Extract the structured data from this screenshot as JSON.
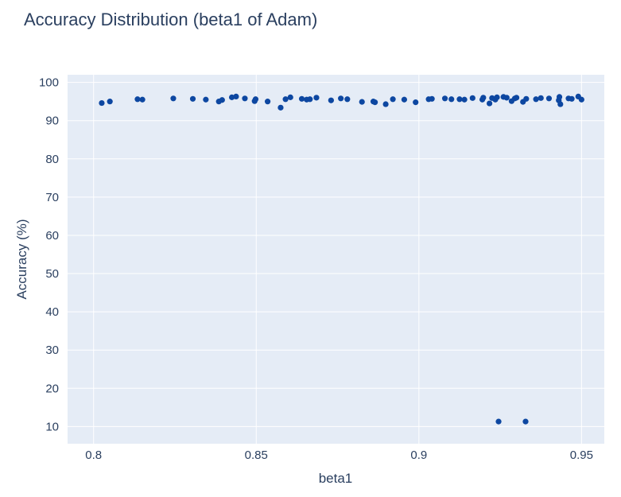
{
  "chart_data": {
    "type": "scatter",
    "title": "Accuracy Distribution (beta1 of Adam)",
    "xlabel": "beta1",
    "ylabel": "Accuracy (%)",
    "xlim": [
      0.792,
      0.957
    ],
    "ylim": [
      5.5,
      102
    ],
    "xticks": [
      0.8,
      0.85,
      0.9,
      0.95
    ],
    "xtick_labels": [
      "0.8",
      "0.85",
      "0.9",
      "0.95"
    ],
    "yticks": [
      10,
      20,
      30,
      40,
      50,
      60,
      70,
      80,
      90,
      100
    ],
    "grid": true,
    "legend": "none",
    "colors": {
      "marker": "#0d47a1",
      "plot_bg": "#e5ecf6",
      "grid": "#ffffff",
      "text": "#2a3f5f"
    },
    "series": [
      {
        "points": [
          [
            0.8025,
            94.6
          ],
          [
            0.805,
            95.0
          ],
          [
            0.8135,
            95.6
          ],
          [
            0.815,
            95.5
          ],
          [
            0.8245,
            95.8
          ],
          [
            0.8305,
            95.7
          ],
          [
            0.8345,
            95.5
          ],
          [
            0.8385,
            95.0
          ],
          [
            0.8395,
            95.4
          ],
          [
            0.8425,
            96.1
          ],
          [
            0.8438,
            96.3
          ],
          [
            0.8465,
            95.8
          ],
          [
            0.8495,
            95.1
          ],
          [
            0.8498,
            95.6
          ],
          [
            0.8535,
            95.0
          ],
          [
            0.8575,
            93.4
          ],
          [
            0.859,
            95.6
          ],
          [
            0.8605,
            96.1
          ],
          [
            0.864,
            95.7
          ],
          [
            0.8655,
            95.5
          ],
          [
            0.8665,
            95.6
          ],
          [
            0.8685,
            96.0
          ],
          [
            0.873,
            95.3
          ],
          [
            0.876,
            95.8
          ],
          [
            0.878,
            95.6
          ],
          [
            0.8825,
            94.9
          ],
          [
            0.886,
            95.0
          ],
          [
            0.8865,
            94.8
          ],
          [
            0.8898,
            94.3
          ],
          [
            0.892,
            95.6
          ],
          [
            0.8955,
            95.5
          ],
          [
            0.899,
            94.8
          ],
          [
            0.903,
            95.6
          ],
          [
            0.904,
            95.7
          ],
          [
            0.908,
            95.8
          ],
          [
            0.91,
            95.6
          ],
          [
            0.9125,
            95.6
          ],
          [
            0.914,
            95.5
          ],
          [
            0.9165,
            95.9
          ],
          [
            0.9195,
            95.5
          ],
          [
            0.9198,
            96.0
          ],
          [
            0.9217,
            94.5
          ],
          [
            0.9225,
            95.9
          ],
          [
            0.9235,
            95.5
          ],
          [
            0.924,
            96.1
          ],
          [
            0.926,
            96.2
          ],
          [
            0.927,
            96.0
          ],
          [
            0.9285,
            95.1
          ],
          [
            0.9295,
            95.8
          ],
          [
            0.93,
            96.0
          ],
          [
            0.932,
            94.9
          ],
          [
            0.933,
            95.7
          ],
          [
            0.936,
            95.6
          ],
          [
            0.9375,
            95.9
          ],
          [
            0.94,
            95.8
          ],
          [
            0.943,
            95.3
          ],
          [
            0.9432,
            96.2
          ],
          [
            0.9435,
            94.3
          ],
          [
            0.946,
            95.8
          ],
          [
            0.947,
            95.7
          ],
          [
            0.949,
            96.3
          ],
          [
            0.95,
            95.5
          ],
          [
            0.9245,
            11.3
          ],
          [
            0.9328,
            11.3
          ]
        ]
      }
    ]
  }
}
